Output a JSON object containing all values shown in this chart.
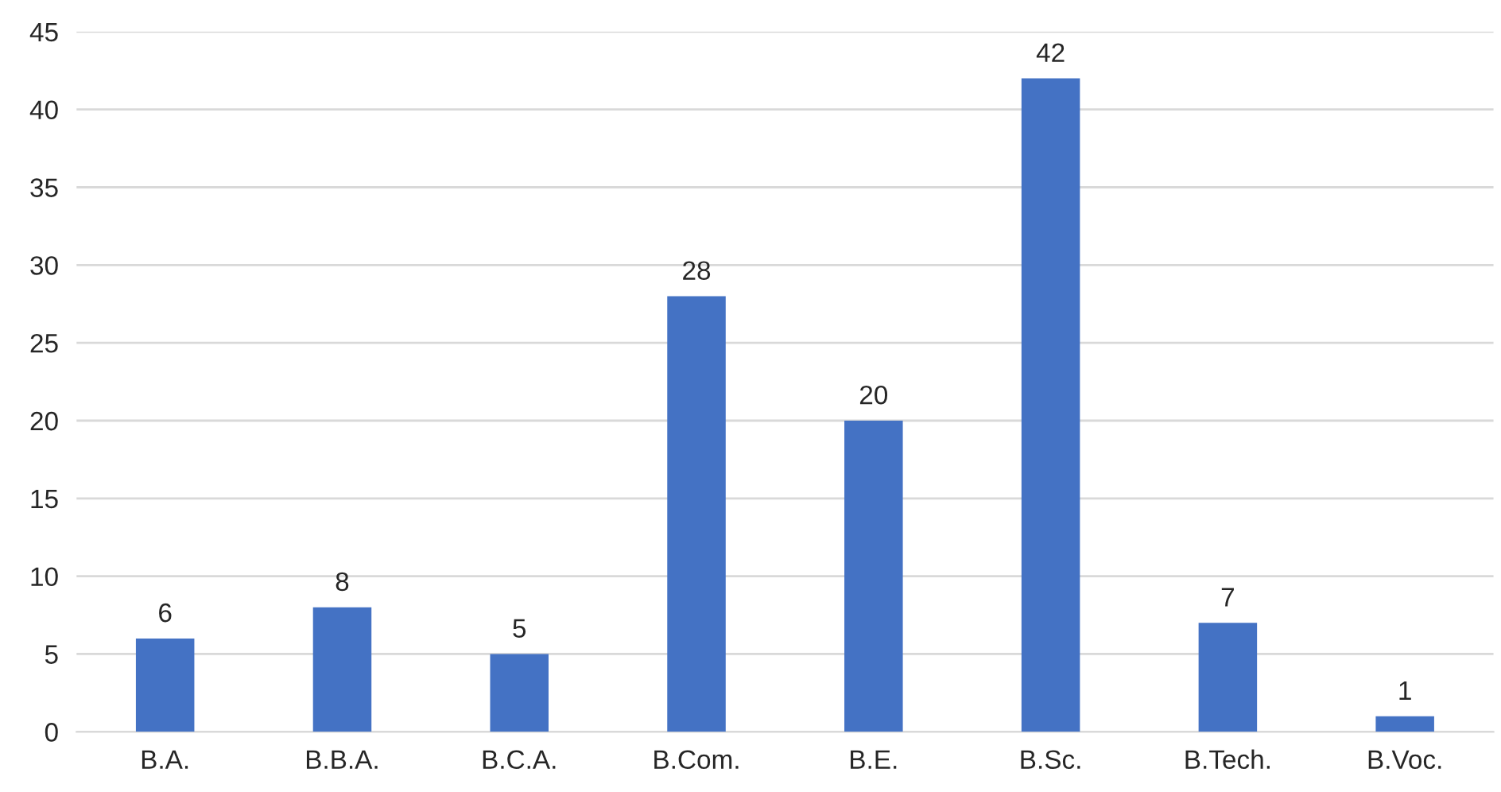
{
  "chart_data": {
    "type": "bar",
    "categories": [
      "B.A.",
      "B.B.A.",
      "B.C.A.",
      "B.Com.",
      "B.E.",
      "B.Sc.",
      "B.Tech.",
      "B.Voc."
    ],
    "values": [
      6,
      8,
      5,
      28,
      20,
      42,
      7,
      1
    ],
    "color": "#4472c4",
    "ylim": [
      0,
      45
    ],
    "yticks": [
      0,
      5,
      10,
      15,
      20,
      25,
      30,
      35,
      40,
      45
    ],
    "grid": "y",
    "data_labels": true
  }
}
